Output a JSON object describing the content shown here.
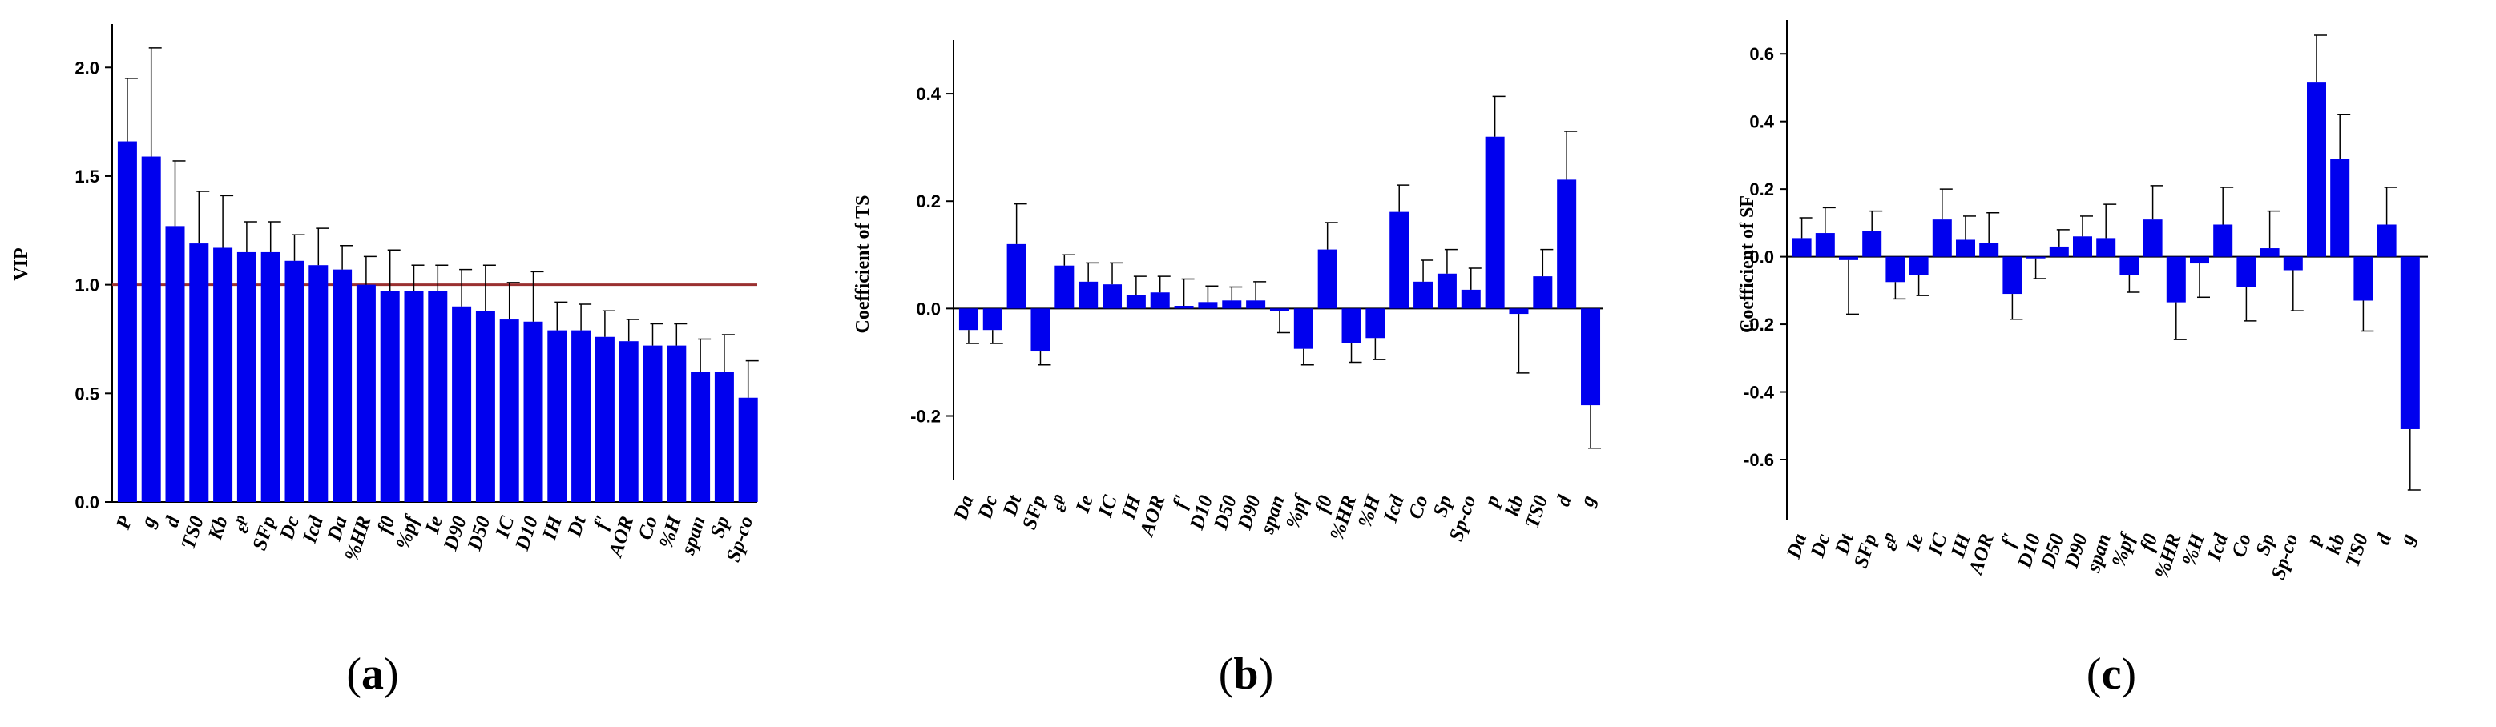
{
  "colors": {
    "bar": "#0000ee",
    "axis": "#000000",
    "reference_line": "#9a3030",
    "error_bar": "#000000"
  },
  "chart_data": [
    {
      "type": "bar",
      "panel_label": "a",
      "ylabel": "VIP",
      "ylim": [
        0,
        2.2
      ],
      "yticks": [
        "0.0",
        "0.5",
        "1.0",
        "1.5",
        "2.0"
      ],
      "ytick_values": [
        0,
        0.5,
        1.0,
        1.5,
        2.0
      ],
      "reference_line": 1.0,
      "grid": false,
      "categories": [
        "P",
        "g",
        "d",
        "TS0",
        "Kb",
        "ε_p",
        "SFp",
        "Dc",
        "Icd",
        "Da",
        "%HR",
        "f0",
        "%pf",
        "Ie",
        "D90",
        "D50",
        "IC",
        "D10",
        "IH",
        "Dt",
        "f'",
        "AOR",
        "Co",
        "%H",
        "span",
        "Sp",
        "Sp-co"
      ],
      "values": [
        1.66,
        1.59,
        1.27,
        1.19,
        1.17,
        1.15,
        1.15,
        1.11,
        1.09,
        1.07,
        1.0,
        0.97,
        0.97,
        0.97,
        0.9,
        0.88,
        0.84,
        0.83,
        0.79,
        0.79,
        0.76,
        0.74,
        0.72,
        0.72,
        0.6,
        0.6,
        0.48
      ],
      "errors": [
        0.29,
        0.5,
        0.3,
        0.24,
        0.24,
        0.14,
        0.14,
        0.12,
        0.17,
        0.11,
        0.13,
        0.19,
        0.12,
        0.12,
        0.17,
        0.21,
        0.17,
        0.23,
        0.13,
        0.12,
        0.12,
        0.1,
        0.1,
        0.1,
        0.15,
        0.17,
        0.17
      ]
    },
    {
      "type": "bar",
      "panel_label": "b",
      "ylabel": "Coefficient of TS",
      "ylim": [
        -0.32,
        0.5
      ],
      "yticks": [
        "-0.2",
        "0.0",
        "0.2",
        "0.4"
      ],
      "ytick_values": [
        -0.2,
        0.0,
        0.2,
        0.4
      ],
      "grid": false,
      "categories": [
        "Da",
        "Dc",
        "Dt",
        "SFp",
        "ε_p",
        "Ie",
        "IC",
        "IH",
        "AOR",
        "f'",
        "D10",
        "D50",
        "D90",
        "span",
        "%pf",
        "f0",
        "%HR",
        "%H",
        "Icd",
        "Co",
        "Sp",
        "Sp-co",
        "p",
        "kb",
        "TS0",
        "d",
        "g"
      ],
      "values": [
        -0.04,
        -0.04,
        0.12,
        -0.08,
        0.08,
        0.05,
        0.045,
        0.025,
        0.03,
        0.005,
        0.012,
        0.015,
        0.015,
        -0.005,
        -0.075,
        0.11,
        -0.065,
        -0.055,
        0.18,
        0.05,
        0.065,
        0.035,
        0.32,
        -0.01,
        0.06,
        0.24,
        -0.18
      ],
      "errors": [
        0.025,
        0.025,
        0.075,
        0.025,
        0.02,
        0.035,
        0.04,
        0.035,
        0.03,
        0.05,
        0.03,
        0.025,
        0.035,
        0.04,
        0.03,
        0.05,
        0.035,
        0.04,
        0.05,
        0.04,
        0.045,
        0.04,
        0.075,
        0.11,
        0.05,
        0.09,
        0.08
      ]
    },
    {
      "type": "bar",
      "panel_label": "c",
      "ylabel": "Coefficient of SF",
      "ylim": [
        -0.78,
        0.7
      ],
      "yticks": [
        "-0.6",
        "-0.4",
        "-0.2",
        "0.0",
        "0.2",
        "0.4",
        "0.6"
      ],
      "ytick_values": [
        -0.6,
        -0.4,
        -0.2,
        0.0,
        0.2,
        0.4,
        0.6
      ],
      "grid": false,
      "categories": [
        "Da",
        "Dc",
        "Dt",
        "SFp",
        "ε_p",
        "Ie",
        "IC",
        "IH",
        "AOR",
        "f'",
        "D10",
        "D50",
        "D90",
        "span",
        "%pf",
        "f0",
        "%HR",
        "%H",
        "Icd",
        "Co",
        "Sp",
        "Sp-co",
        "p",
        "kb",
        "TS0",
        "d",
        "g"
      ],
      "values": [
        0.055,
        0.07,
        -0.01,
        0.075,
        -0.075,
        -0.055,
        0.11,
        0.05,
        0.04,
        -0.11,
        -0.005,
        0.03,
        0.06,
        0.055,
        -0.055,
        0.11,
        -0.135,
        -0.02,
        0.095,
        -0.09,
        0.025,
        -0.04,
        0.515,
        0.29,
        -0.13,
        0.095,
        -0.51
      ],
      "errors": [
        0.06,
        0.075,
        0.16,
        0.06,
        0.05,
        0.06,
        0.09,
        0.07,
        0.09,
        0.075,
        0.06,
        0.05,
        0.06,
        0.1,
        0.05,
        0.1,
        0.11,
        0.1,
        0.11,
        0.1,
        0.11,
        0.12,
        0.14,
        0.13,
        0.09,
        0.11,
        0.18
      ]
    }
  ]
}
